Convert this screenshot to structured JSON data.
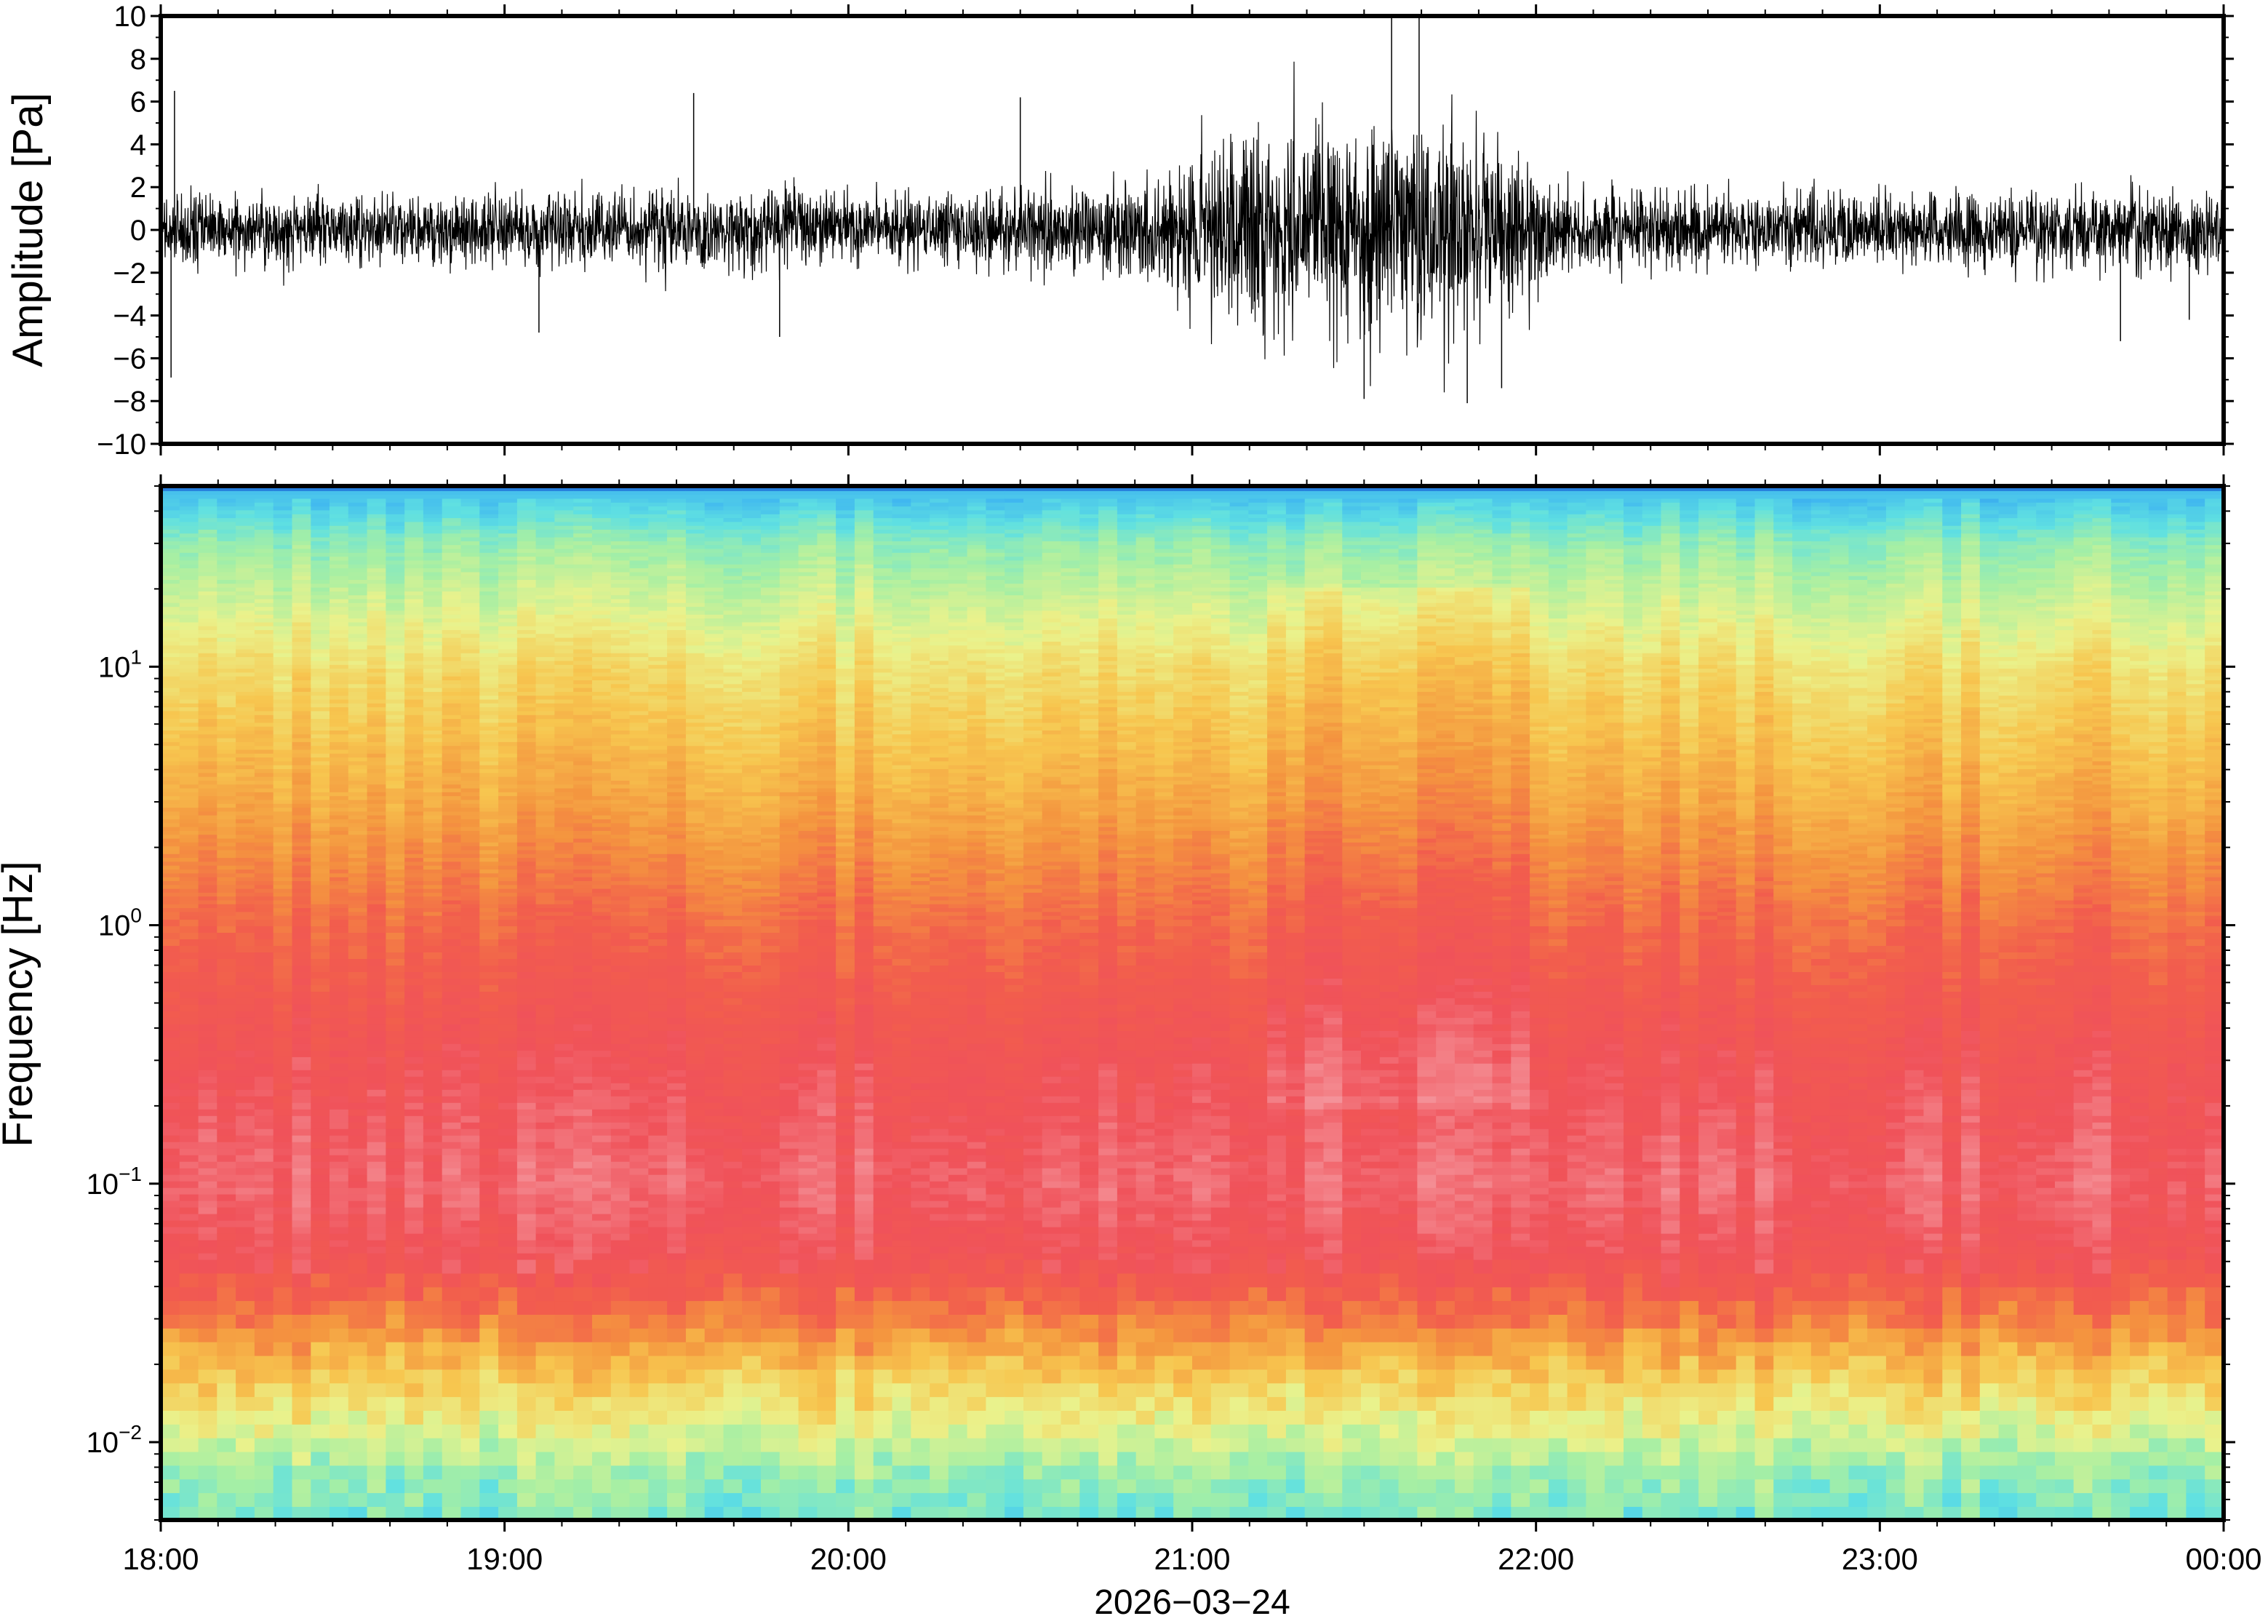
{
  "chart_data": [
    {
      "type": "line",
      "ylabel": "Amplitude [Pa]",
      "ylim": [
        -10,
        10
      ],
      "yticks": [
        -10,
        -8,
        -6,
        -4,
        -2,
        0,
        2,
        4,
        6,
        8,
        10
      ],
      "ytick_labels": [
        "−10",
        "−8",
        "−6",
        "−4",
        "−2",
        "0",
        "2",
        "4",
        "6",
        "8",
        "10"
      ],
      "x_range_hours": [
        18,
        24
      ],
      "color": "#000000",
      "envelope": {
        "x_hours": [
          18.0,
          18.5,
          19.0,
          19.5,
          20.0,
          20.5,
          20.9,
          21.0,
          21.25,
          21.5,
          21.75,
          22.0,
          22.1,
          22.5,
          23.0,
          23.5,
          24.0
        ],
        "amplitude_pa": [
          1.5,
          1.5,
          1.5,
          1.6,
          1.5,
          1.6,
          2.2,
          3.2,
          4.2,
          4.6,
          4.2,
          2.8,
          1.7,
          1.5,
          1.6,
          1.6,
          1.5
        ]
      },
      "peak_events": [
        {
          "x_hours": 18.03,
          "value": -6.9
        },
        {
          "x_hours": 18.04,
          "value": 6.5
        },
        {
          "x_hours": 19.1,
          "value": -4.8
        },
        {
          "x_hours": 19.55,
          "value": 6.4
        },
        {
          "x_hours": 19.8,
          "value": -5.0
        },
        {
          "x_hours": 20.5,
          "value": 6.2
        },
        {
          "x_hours": 21.5,
          "value": -7.9
        },
        {
          "x_hours": 21.58,
          "value": 9.9
        },
        {
          "x_hours": 21.66,
          "value": 9.9
        },
        {
          "x_hours": 21.8,
          "value": -8.1
        },
        {
          "x_hours": 21.9,
          "value": -7.4
        },
        {
          "x_hours": 23.7,
          "value": -5.2
        },
        {
          "x_hours": 23.9,
          "value": -4.2
        }
      ]
    },
    {
      "type": "heatmap",
      "ylabel": "Frequency [Hz]",
      "xlabel": "2026−03−24",
      "yscale": "log",
      "ylim_hz": [
        0.005,
        50
      ],
      "ytick_labels": [
        {
          "value": 0.01,
          "base": "10",
          "exp": "−2"
        },
        {
          "value": 0.1,
          "base": "10",
          "exp": "−1"
        },
        {
          "value": 1,
          "base": "10",
          "exp": "0"
        },
        {
          "value": 10,
          "base": "10",
          "exp": "1"
        }
      ],
      "xticks_hours": [
        18,
        19,
        20,
        21,
        22,
        23,
        24
      ],
      "xtick_labels": [
        "18:00",
        "19:00",
        "20:00",
        "21:00",
        "22:00",
        "23:00",
        "00:00"
      ],
      "colormap": "rainbow",
      "colors": [
        "#060a6e",
        "#1f6fd8",
        "#3fb6f0",
        "#5fe0e2",
        "#a6efa4",
        "#eaf28c",
        "#f7c64f",
        "#f4953f",
        "#f25d4d",
        "#f0525a",
        "#f59aa0"
      ],
      "level_profile": {
        "freq_hz": [
          0.005,
          0.008,
          0.012,
          0.02,
          0.03,
          0.05,
          0.1,
          0.3,
          1,
          3,
          10,
          30,
          48,
          50
        ],
        "level": [
          0.33,
          0.4,
          0.5,
          0.62,
          0.74,
          0.88,
          0.93,
          0.88,
          0.78,
          0.66,
          0.55,
          0.38,
          0.22,
          0.0
        ]
      },
      "elevated_interval_hours": [
        21.2,
        22.0
      ]
    }
  ]
}
